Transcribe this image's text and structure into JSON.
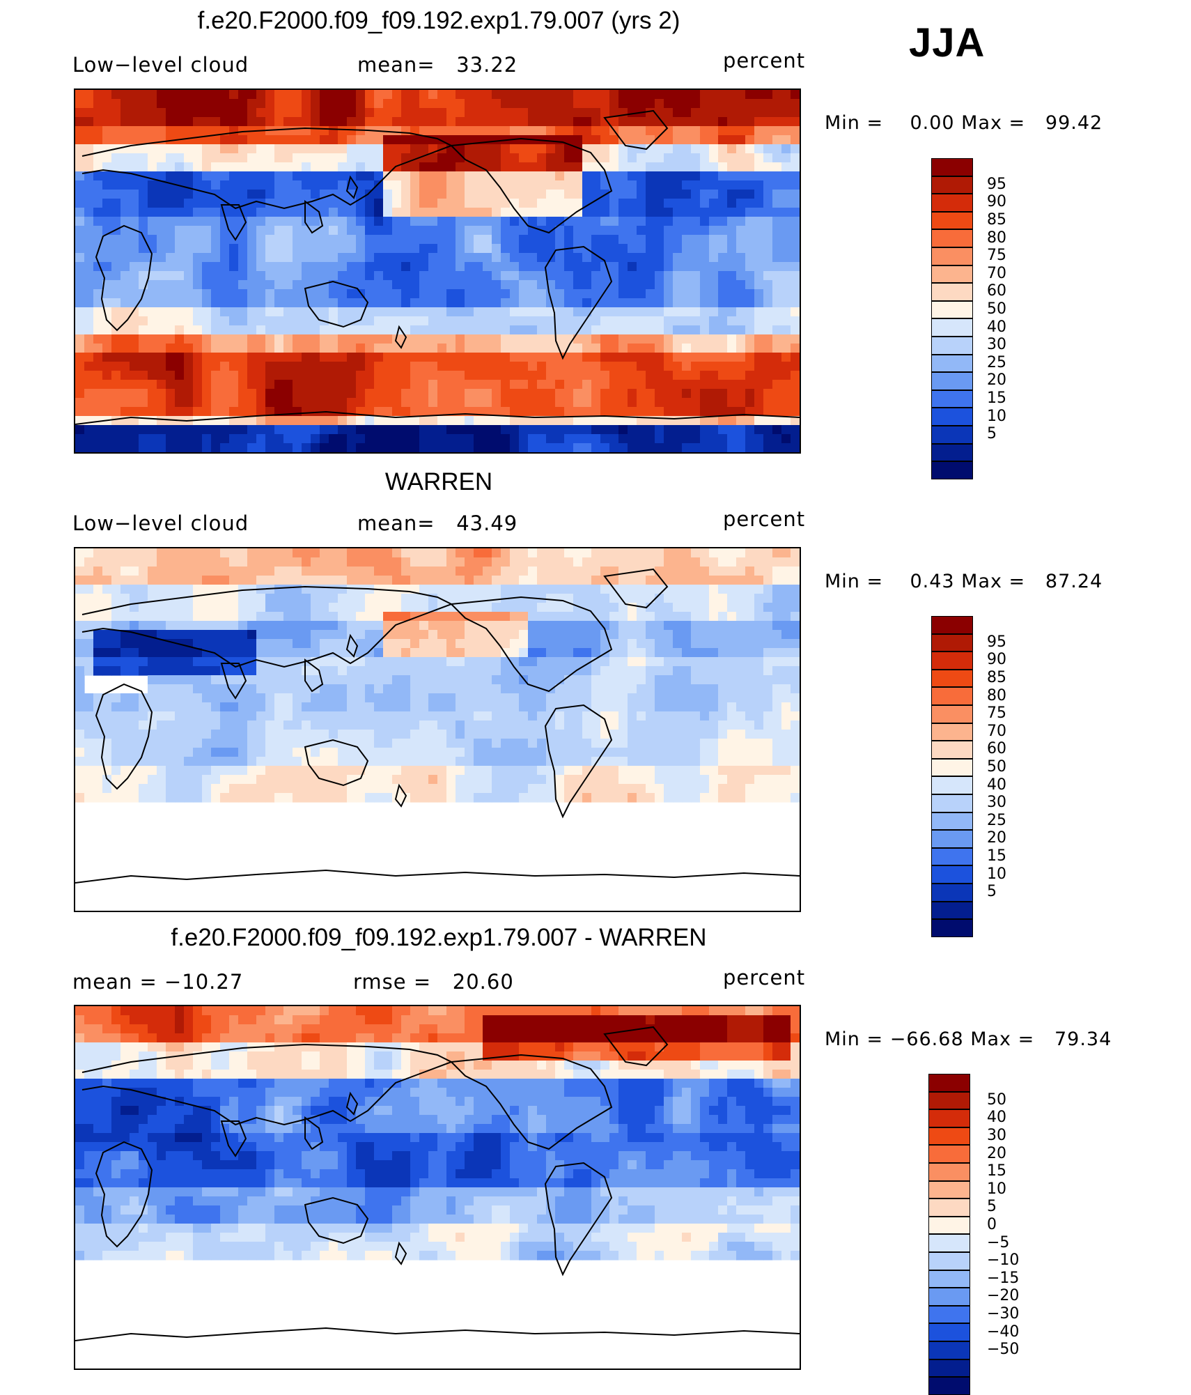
{
  "season": "JJA",
  "panels": [
    {
      "id": "model",
      "title": "f.e20.F2000.f09_f09.192.exp1.79.007 (yrs 2)",
      "left_label": "Low−level cloud",
      "mid_label": "mean=   33.22",
      "right_label": "percent",
      "minmax": "Min =    0.00 Max =   99.42",
      "fill_style": "model"
    },
    {
      "id": "obs",
      "title": "WARREN",
      "left_label": "Low−level cloud",
      "mid_label": "mean=   43.49",
      "right_label": "percent",
      "minmax": "Min =    0.43 Max =   87.24",
      "fill_style": "obs"
    },
    {
      "id": "diff",
      "title": "f.e20.F2000.f09_f09.192.exp1.79.007 - WARREN",
      "left_label": "mean = −10.27",
      "mid_label": "rmse =   20.60",
      "right_label": "percent",
      "minmax": "Min = −66.68 Max =   79.34",
      "fill_style": "diff"
    }
  ],
  "colorbars": {
    "abs": {
      "colors": [
        "#8b0000",
        "#b01a05",
        "#d42c0a",
        "#ee4a14",
        "#f86c3a",
        "#fa8f62",
        "#fcb48e",
        "#fdd9c2",
        "#fff4e6",
        "#d6e6fb",
        "#b8d2fa",
        "#92b8f7",
        "#6a9af2",
        "#3f74ee",
        "#1c52dd",
        "#0b36b8",
        "#031e8f",
        "#000c6e"
      ],
      "labels": [
        "95",
        "90",
        "85",
        "80",
        "75",
        "70",
        "60",
        "50",
        "40",
        "30",
        "25",
        "20",
        "15",
        "10",
        "5"
      ]
    },
    "diff": {
      "colors": [
        "#8b0000",
        "#b01a05",
        "#d42c0a",
        "#ee4a14",
        "#f86c3a",
        "#fa8f62",
        "#fcb48e",
        "#fdd9c2",
        "#fff4e6",
        "#d6e6fb",
        "#b8d2fa",
        "#92b8f7",
        "#6a9af2",
        "#3f74ee",
        "#1c52dd",
        "#0b36b8",
        "#031e8f",
        "#000c6e"
      ],
      "labels": [
        "50",
        "40",
        "30",
        "20",
        "15",
        "10",
        "5",
        "0",
        "−5",
        "−10",
        "−15",
        "−20",
        "−30",
        "−40",
        "−50"
      ]
    }
  }
}
